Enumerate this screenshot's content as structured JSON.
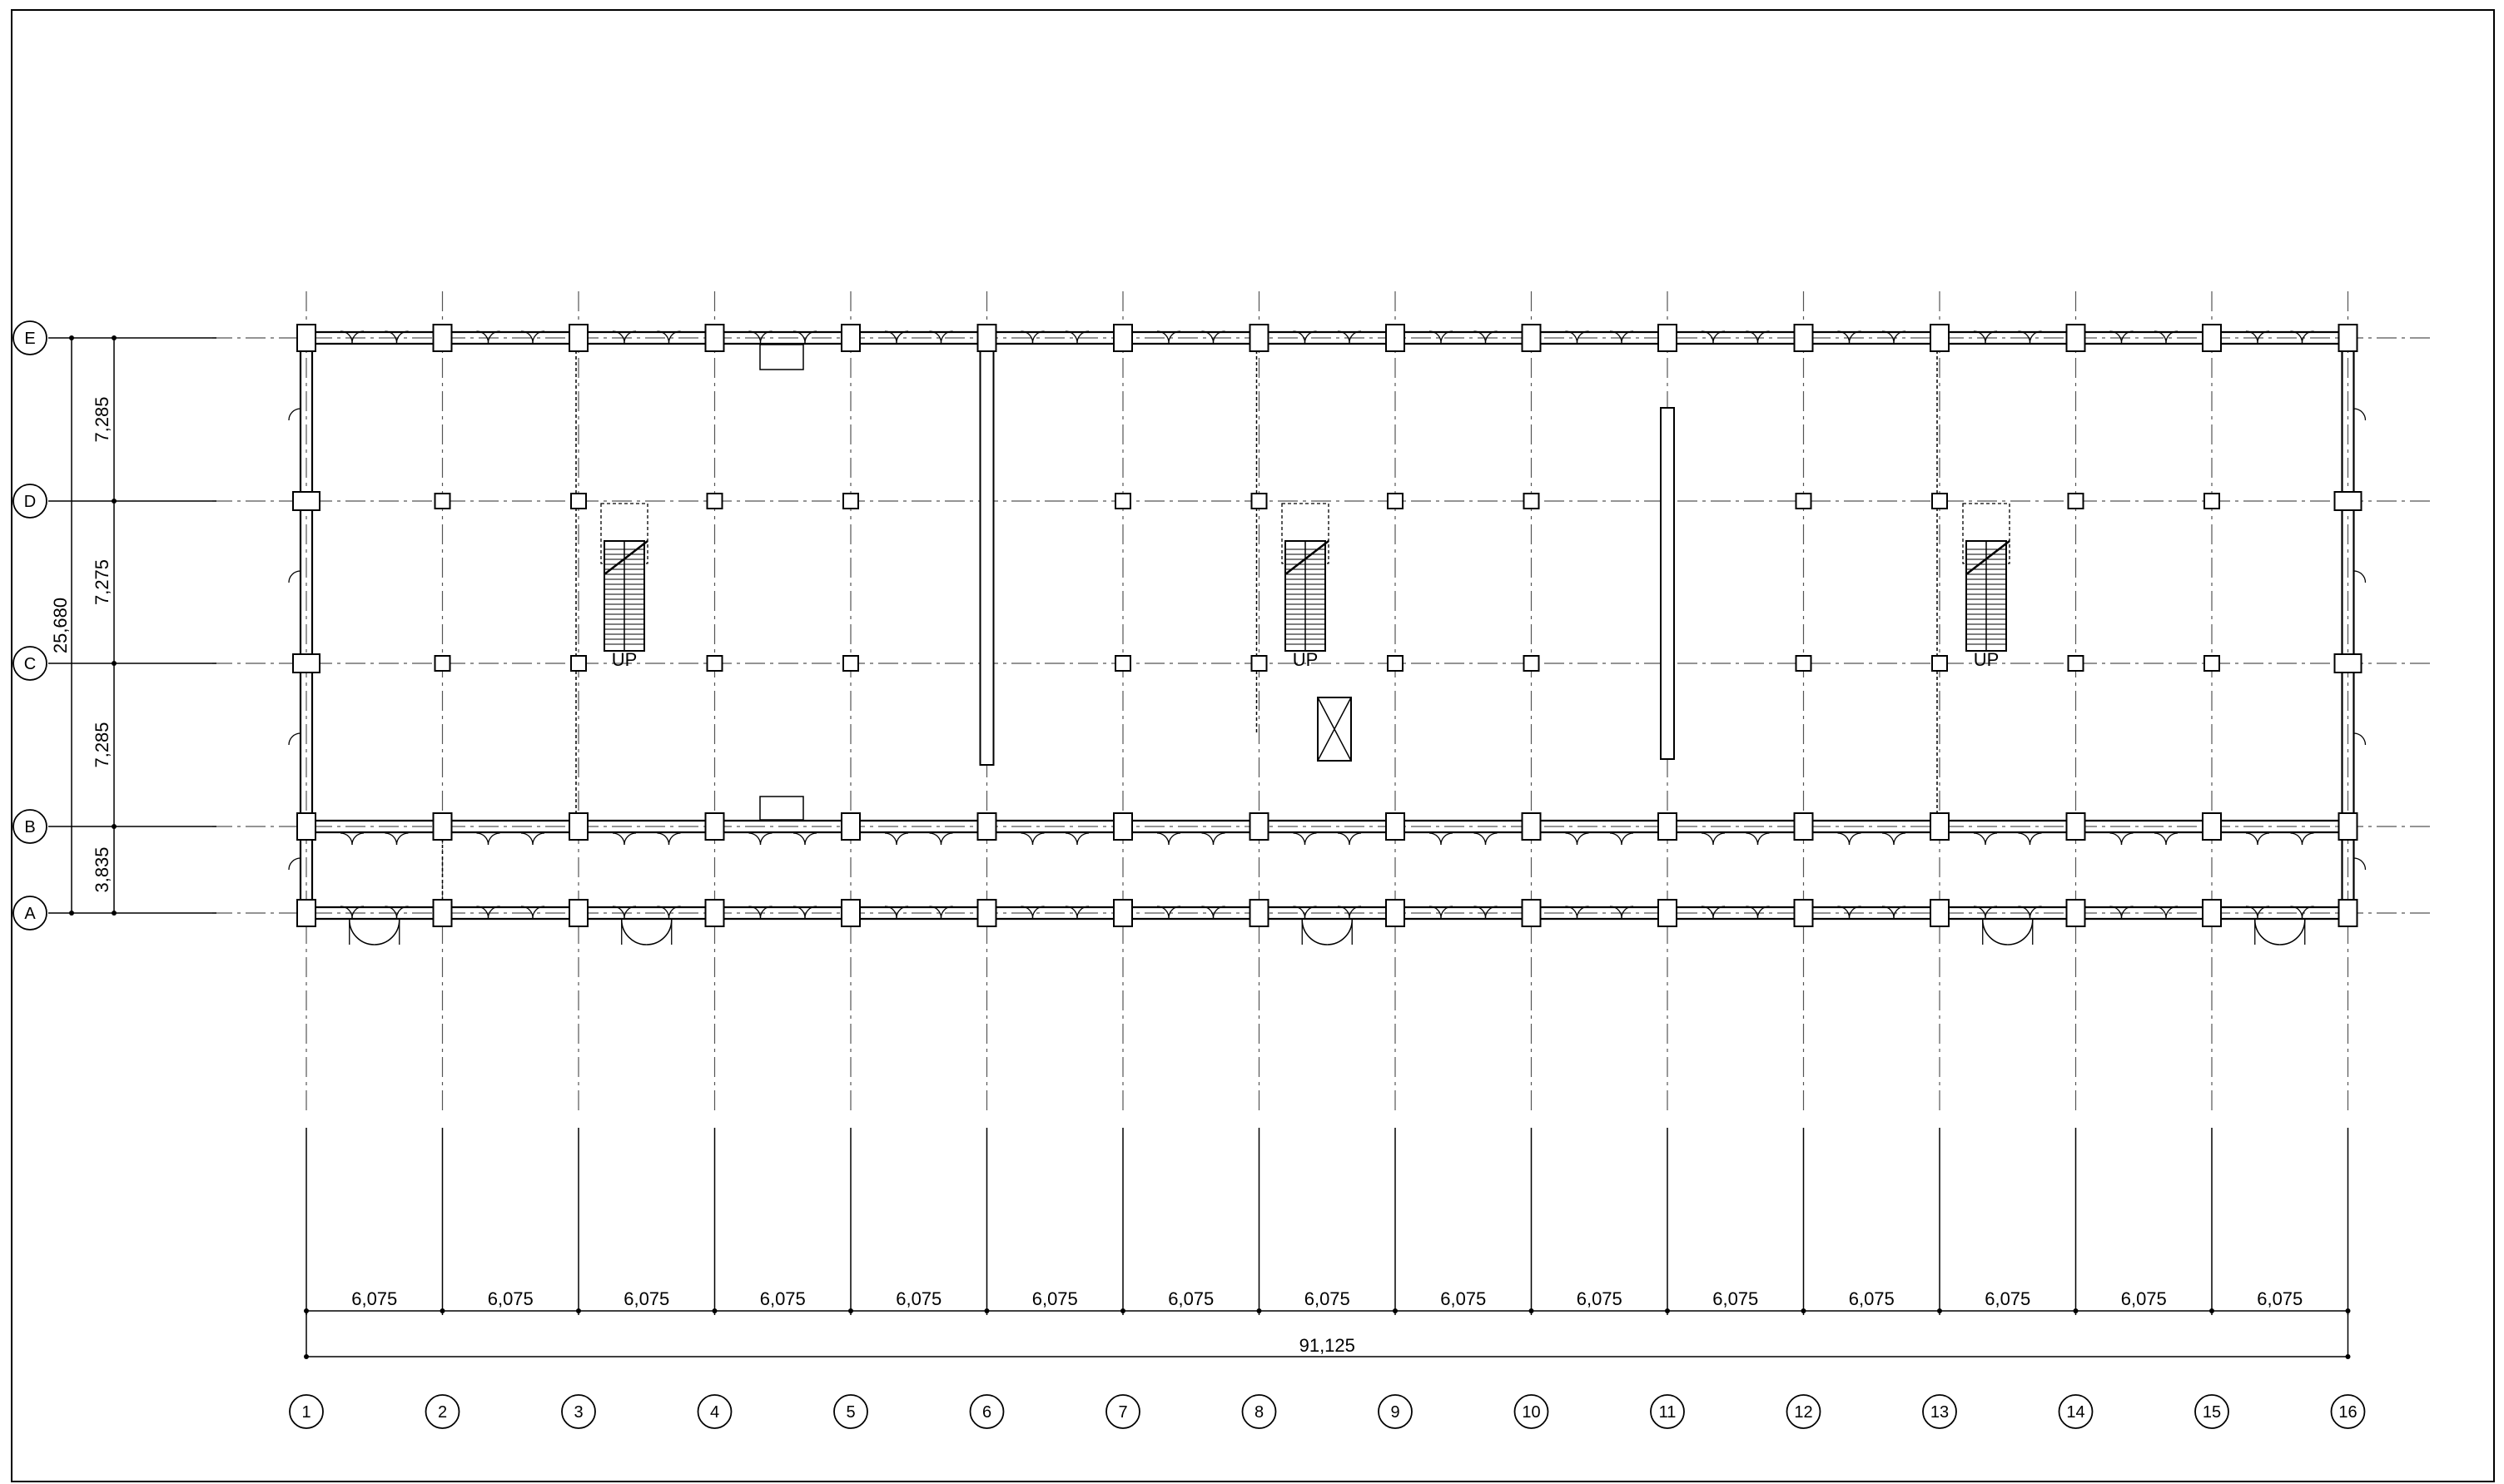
{
  "grid": {
    "columns": [
      "1",
      "2",
      "3",
      "4",
      "5",
      "6",
      "7",
      "8",
      "9",
      "10",
      "11",
      "12",
      "13",
      "14",
      "15",
      "16"
    ],
    "rows": [
      "E",
      "D",
      "C",
      "B",
      "A"
    ]
  },
  "dimensions": {
    "bays": [
      "6,075",
      "6,075",
      "6,075",
      "6,075",
      "6,075",
      "6,075",
      "6,075",
      "6,075",
      "6,075",
      "6,075",
      "6,075",
      "6,075",
      "6,075",
      "6,075",
      "6,075"
    ],
    "total_length": "91,125",
    "row_spacings": [
      "7,285",
      "7,275",
      "7,285",
      "3,835"
    ],
    "total_width": "25,680"
  },
  "stairs": {
    "label": "UP"
  },
  "colors": {
    "line": "#000000",
    "grid_line": "#555555"
  }
}
